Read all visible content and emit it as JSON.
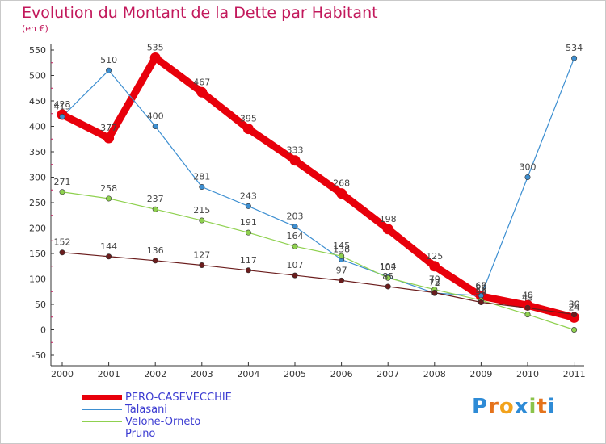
{
  "header": {
    "title": "Evolution du Montant de la Dette par Habitant",
    "subtitle": "(en €)"
  },
  "logo": {
    "letters": [
      "P",
      "r",
      "o",
      "x",
      "i",
      "t",
      "i"
    ],
    "colors": [
      "#2e8bd6",
      "#e5731c",
      "#f2a21b",
      "#2e8bd6",
      "#8bc34a",
      "#e5731c",
      "#2e8bd6"
    ]
  },
  "chart_data": {
    "type": "line",
    "title": "Evolution du Montant de la Dette par Habitant",
    "subtitle": "(en €)",
    "xlabel": "",
    "ylabel": "",
    "x": [
      2000,
      2001,
      2002,
      2003,
      2004,
      2005,
      2006,
      2007,
      2008,
      2009,
      2010,
      2011
    ],
    "ylim": [
      -50,
      550
    ],
    "yticks": [
      -50,
      0,
      50,
      100,
      150,
      200,
      250,
      300,
      350,
      400,
      450,
      500,
      550
    ],
    "grid": false,
    "legend_position": "bottom-left",
    "series": [
      {
        "name": "PERO-CASEVECCHIE",
        "color": "#e8000b",
        "values": [
          423,
          377,
          535,
          467,
          395,
          333,
          268,
          198,
          125,
          66,
          48,
          24
        ],
        "labels": [
          "423",
          "377",
          "535",
          "467",
          "395",
          "333",
          "268",
          "198",
          "125",
          "66",
          "48",
          "24"
        ]
      },
      {
        "name": "Talasani",
        "color": "#3d8fd1",
        "values": [
          419,
          510,
          400,
          281,
          243,
          203,
          138,
          104,
          72,
          67,
          300,
          534
        ],
        "labels": [
          "419",
          "510",
          "400",
          "281",
          "243",
          "203",
          "138",
          "104",
          "72",
          "67",
          "300",
          "534"
        ]
      },
      {
        "name": "Velone-Orneto",
        "color": "#8fd14f",
        "values": [
          271,
          258,
          237,
          215,
          191,
          164,
          145,
          102,
          79,
          58,
          30,
          0
        ],
        "labels": [
          "271",
          "258",
          "237",
          "215",
          "191",
          "164",
          "145",
          "102",
          "79",
          "58",
          "",
          ""
        ]
      },
      {
        "name": "Pruno",
        "color": "#6b1d1d",
        "values": [
          152,
          144,
          136,
          127,
          117,
          107,
          97,
          85,
          73,
          54,
          43,
          30
        ],
        "labels": [
          "152",
          "144",
          "136",
          "127",
          "117",
          "107",
          "97",
          "85",
          "73",
          "54",
          "43",
          "30"
        ]
      }
    ]
  }
}
